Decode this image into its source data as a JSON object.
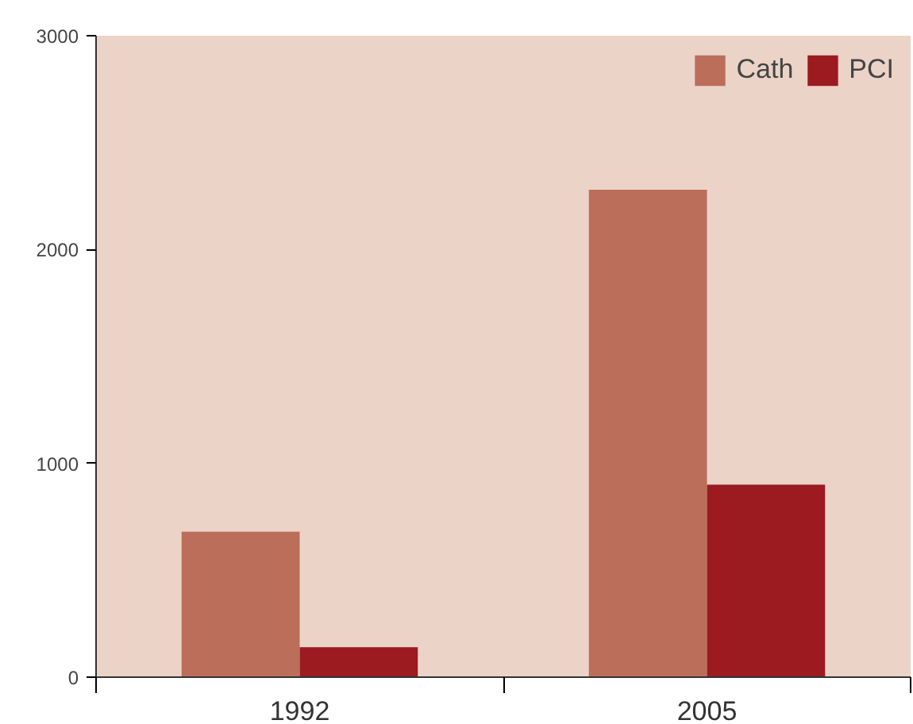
{
  "chart_data": {
    "type": "bar",
    "categories": [
      "1992",
      "2005"
    ],
    "series": [
      {
        "name": "Cath",
        "color": "#bb6e5a",
        "values": [
          680,
          2280
        ]
      },
      {
        "name": "PCI",
        "color": "#9b1b20",
        "values": [
          140,
          900
        ]
      }
    ],
    "ylim": [
      0,
      3000
    ],
    "yticks": [
      0,
      1000,
      2000,
      3000
    ],
    "grid": false,
    "legend": "top right"
  }
}
